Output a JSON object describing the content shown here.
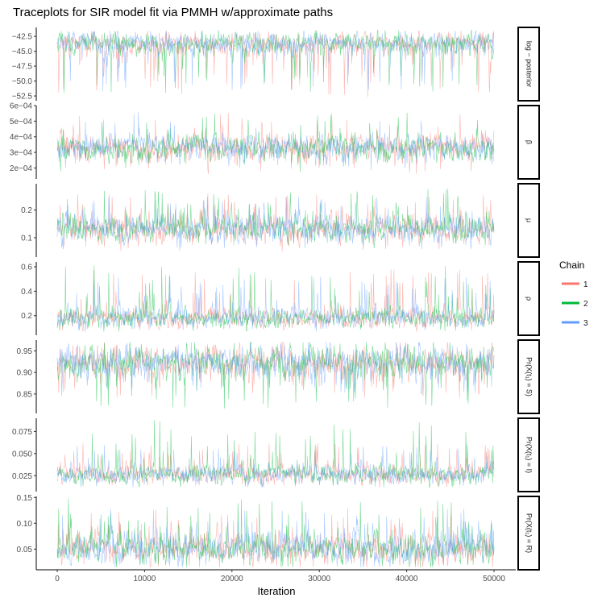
{
  "chart_data": {
    "type": "line",
    "title": "Traceplots for SIR model fit via PMMH w/approximate paths",
    "xlabel": "Iteration",
    "xlim": [
      0,
      50000
    ],
    "x_ticks": [
      0,
      10000,
      20000,
      30000,
      40000,
      50000
    ],
    "x_tick_labels": [
      "0",
      "10000",
      "20000",
      "30000",
      "40000",
      "50000"
    ],
    "grid": false,
    "legend": {
      "title": "Chain",
      "position": "right",
      "entries": [
        {
          "label": "1",
          "color": "#F8766D"
        },
        {
          "label": "2",
          "color": "#00BA38"
        },
        {
          "label": "3",
          "color": "#619CFF"
        }
      ]
    },
    "panels": [
      {
        "strip": "log − posterior",
        "ylim": [
          -53.3,
          -41.0
        ],
        "y_ticks": [
          -42.5,
          -45.0,
          -47.5,
          -50.0,
          -52.5
        ],
        "y_tick_labels": [
          "−42.5",
          "−45.0",
          "−47.5",
          "−50.0",
          "−52.5"
        ],
        "center": -43.6,
        "spread": 0.9,
        "spike_dir": -1,
        "spike_max": -52.8,
        "series": [
          {
            "name": "1",
            "mean": -43.7,
            "range": [
              -52.8,
              -41.6
            ]
          },
          {
            "name": "2",
            "mean": -43.6,
            "range": [
              -52.0,
              -41.5
            ]
          },
          {
            "name": "3",
            "mean": -43.6,
            "range": [
              -51.8,
              -41.6
            ]
          }
        ]
      },
      {
        "strip": "β",
        "ylim": [
          0.00013,
          0.0006
        ],
        "y_ticks": [
          0.0002,
          0.0003,
          0.0004,
          0.0005,
          0.0006
        ],
        "y_tick_labels": [
          "2e−04",
          "3e−04",
          "4e−04",
          "5e−04",
          "6e−04"
        ],
        "center": 0.00033,
        "spread": 4e-05,
        "spike_dir": 0,
        "spike_max": 0.00057,
        "series": [
          {
            "name": "1",
            "mean": 0.00033,
            "range": [
              0.00016,
              0.00056
            ]
          },
          {
            "name": "2",
            "mean": 0.00033,
            "range": [
              0.00017,
              0.00057
            ]
          },
          {
            "name": "3",
            "mean": 0.00033,
            "range": [
              0.00018,
              0.00056
            ]
          }
        ]
      },
      {
        "strip": "μ",
        "ylim": [
          0.03,
          0.295
        ],
        "y_ticks": [
          0.1,
          0.2
        ],
        "y_tick_labels": [
          "0.1",
          "0.2"
        ],
        "center": 0.13,
        "spread": 0.025,
        "spike_dir": 1,
        "spike_max": 0.28,
        "series": [
          {
            "name": "1",
            "mean": 0.13,
            "range": [
              0.05,
              0.26
            ]
          },
          {
            "name": "2",
            "mean": 0.13,
            "range": [
              0.05,
              0.28
            ]
          },
          {
            "name": "3",
            "mean": 0.13,
            "range": [
              0.05,
              0.25
            ]
          }
        ]
      },
      {
        "strip": "ρ",
        "ylim": [
          0.04,
          0.64
        ],
        "y_ticks": [
          0.2,
          0.4,
          0.6
        ],
        "y_tick_labels": [
          "0.2",
          "0.4",
          "0.6"
        ],
        "center": 0.18,
        "spread": 0.04,
        "spike_dir": 1,
        "spike_max": 0.61,
        "series": [
          {
            "name": "1",
            "mean": 0.18,
            "range": [
              0.07,
              0.58
            ]
          },
          {
            "name": "2",
            "mean": 0.18,
            "range": [
              0.07,
              0.61
            ]
          },
          {
            "name": "3",
            "mean": 0.18,
            "range": [
              0.07,
              0.52
            ]
          }
        ]
      },
      {
        "strip": "Pr(X(t₁) = S)",
        "ylim": [
          0.805,
          0.975
        ],
        "y_ticks": [
          0.85,
          0.9,
          0.95
        ],
        "y_tick_labels": [
          "0.85",
          "0.90",
          "0.95"
        ],
        "center": 0.925,
        "spread": 0.018,
        "spike_dir": -1,
        "spike_max": 0.815,
        "series": [
          {
            "name": "1",
            "mean": 0.925,
            "range": [
              0.84,
              0.97
            ]
          },
          {
            "name": "2",
            "mean": 0.925,
            "range": [
              0.815,
              0.97
            ]
          },
          {
            "name": "3",
            "mean": 0.925,
            "range": [
              0.85,
              0.97
            ]
          }
        ]
      },
      {
        "strip": "Pr(X(t₁) = I)",
        "ylim": [
          0.007,
          0.09
        ],
        "y_ticks": [
          0.025,
          0.05,
          0.075
        ],
        "y_tick_labels": [
          "0.025",
          "0.050",
          "0.075"
        ],
        "center": 0.025,
        "spread": 0.005,
        "spike_dir": 1,
        "spike_max": 0.088,
        "series": [
          {
            "name": "1",
            "mean": 0.026,
            "range": [
              0.012,
              0.063
            ]
          },
          {
            "name": "2",
            "mean": 0.026,
            "range": [
              0.012,
              0.088
            ]
          },
          {
            "name": "3",
            "mean": 0.026,
            "range": [
              0.012,
              0.06
            ]
          }
        ]
      },
      {
        "strip": "Pr(X(t₁) = R)",
        "ylim": [
          0.01,
          0.152
        ],
        "y_ticks": [
          0.05,
          0.1,
          0.15
        ],
        "y_tick_labels": [
          "0.05",
          "0.10",
          "0.15"
        ],
        "center": 0.05,
        "spread": 0.014,
        "spike_dir": 1,
        "spike_max": 0.148,
        "series": [
          {
            "name": "1",
            "mean": 0.05,
            "range": [
              0.015,
              0.13
            ]
          },
          {
            "name": "2",
            "mean": 0.05,
            "range": [
              0.015,
              0.148
            ]
          },
          {
            "name": "3",
            "mean": 0.05,
            "range": [
              0.015,
              0.13
            ]
          }
        ]
      }
    ]
  }
}
